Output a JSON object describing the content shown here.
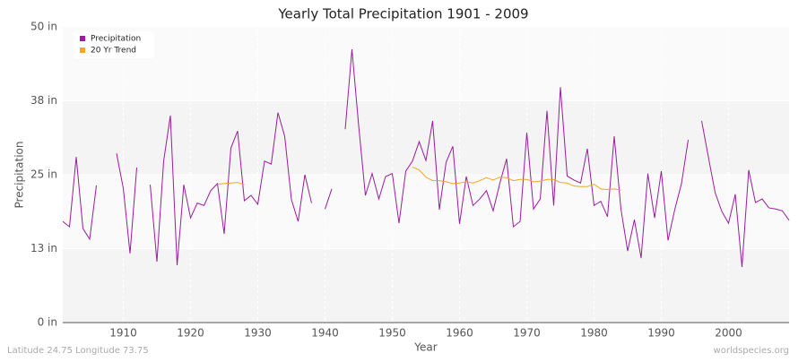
{
  "chart_data": {
    "type": "line",
    "title": "Yearly Total Precipitation 1901 - 2009",
    "x_label": "Year",
    "y_label": "Precipitation",
    "footer_left": "Latitude 24.75 Longitude 73.75",
    "footer_right": "worldspecies.org",
    "x": [
      1901,
      1902,
      1903,
      1904,
      1905,
      1906,
      1907,
      1908,
      1909,
      1910,
      1911,
      1912,
      1913,
      1914,
      1915,
      1916,
      1917,
      1918,
      1919,
      1920,
      1921,
      1922,
      1923,
      1924,
      1925,
      1926,
      1927,
      1928,
      1929,
      1930,
      1931,
      1932,
      1933,
      1934,
      1935,
      1936,
      1937,
      1938,
      1939,
      1940,
      1941,
      1942,
      1943,
      1944,
      1945,
      1946,
      1947,
      1948,
      1949,
      1950,
      1951,
      1952,
      1953,
      1954,
      1955,
      1956,
      1957,
      1958,
      1959,
      1960,
      1961,
      1962,
      1963,
      1964,
      1965,
      1966,
      1967,
      1968,
      1969,
      1970,
      1971,
      1972,
      1973,
      1974,
      1975,
      1976,
      1977,
      1978,
      1979,
      1980,
      1981,
      1982,
      1983,
      1984,
      1985,
      1986,
      1987,
      1988,
      1989,
      1990,
      1991,
      1992,
      1993,
      1994,
      1995,
      1996,
      1997,
      1998,
      1999,
      2000,
      2001,
      2002,
      2003,
      2004,
      2005,
      2006,
      2007,
      2008,
      2009
    ],
    "series": [
      {
        "name": "Precipitation",
        "color": "#9b1b9e",
        "values": [
          17.1,
          16.2,
          28.0,
          15.9,
          14.1,
          23.2,
          null,
          null,
          28.6,
          22.7,
          11.7,
          26.2,
          null,
          23.3,
          10.3,
          27.3,
          35.0,
          9.7,
          23.3,
          17.7,
          20.2,
          19.8,
          22.3,
          23.5,
          15.0,
          29.5,
          32.4,
          20.6,
          21.5,
          20.0,
          27.3,
          26.8,
          35.5,
          31.5,
          20.8,
          17.1,
          25.0,
          20.2,
          null,
          19.2,
          22.6,
          null,
          32.7,
          46.2,
          33.3,
          21.5,
          25.2,
          20.9,
          24.7,
          25.2,
          16.8,
          25.6,
          27.3,
          30.6,
          27.4,
          34.1,
          19.1,
          27.1,
          29.8,
          16.7,
          24.7,
          19.8,
          20.9,
          22.3,
          18.9,
          23.6,
          27.7,
          16.2,
          17.1,
          32.1,
          19.2,
          20.9,
          35.8,
          19.8,
          39.8,
          24.8,
          24.1,
          23.6,
          29.4,
          19.8,
          20.5,
          17.9,
          31.5,
          19.2,
          12.1,
          17.4,
          10.9,
          25.2,
          17.7,
          25.6,
          13.9,
          19.1,
          23.5,
          30.9,
          null,
          34.1,
          28.0,
          22.0,
          18.8,
          16.8,
          21.7,
          9.4,
          25.8,
          20.3,
          20.9,
          19.4,
          19.2,
          18.9,
          17.3
        ]
      },
      {
        "name": "20 Yr Trend",
        "color": "#f5a623",
        "values": [
          null,
          null,
          null,
          null,
          null,
          null,
          null,
          null,
          null,
          null,
          null,
          null,
          null,
          null,
          null,
          null,
          null,
          null,
          null,
          null,
          null,
          null,
          null,
          23.4,
          23.5,
          23.6,
          23.7,
          23.3,
          null,
          null,
          null,
          null,
          null,
          null,
          null,
          null,
          null,
          null,
          null,
          null,
          null,
          null,
          null,
          null,
          null,
          null,
          null,
          null,
          null,
          null,
          null,
          null,
          26.3,
          25.8,
          24.6,
          24.0,
          24.0,
          23.8,
          23.5,
          23.6,
          23.8,
          23.6,
          24.0,
          24.5,
          24.1,
          24.6,
          24.5,
          24.0,
          24.2,
          24.2,
          23.8,
          23.9,
          24.2,
          24.2,
          23.7,
          23.6,
          23.1,
          23.0,
          23.0,
          23.4,
          22.6,
          22.5,
          22.6,
          22.4,
          null,
          null,
          null,
          null,
          null,
          null,
          null,
          null,
          null,
          null,
          null,
          null,
          null,
          null,
          null,
          null,
          null,
          null,
          null,
          null,
          null,
          null,
          null,
          null,
          null
        ]
      }
    ],
    "xlim": [
      1901,
      2009
    ],
    "xticks": [
      1910,
      1920,
      1930,
      1940,
      1950,
      1960,
      1970,
      1980,
      1990,
      2000
    ],
    "ylim": [
      0,
      50
    ],
    "yticks": [
      {
        "value": 0,
        "label": "0 in"
      },
      {
        "value": 12.5,
        "label": "13 in"
      },
      {
        "value": 25,
        "label": "25 in"
      },
      {
        "value": 37.5,
        "label": "38 in"
      },
      {
        "value": 50,
        "label": "50 in"
      }
    ],
    "grid": true,
    "legend": "top-left"
  }
}
